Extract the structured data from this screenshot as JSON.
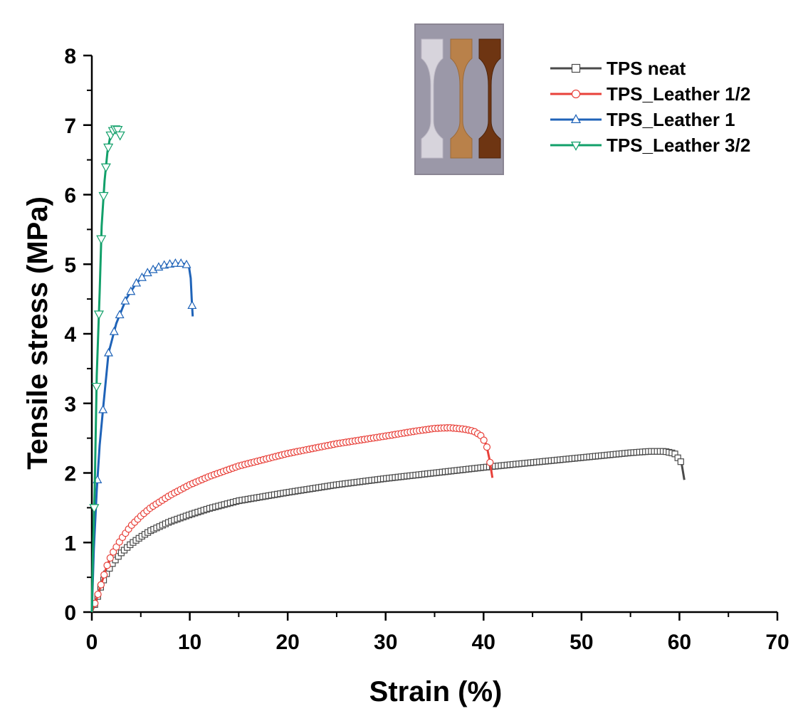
{
  "chart_data": {
    "type": "line",
    "title": "",
    "xlabel": "Strain (%)",
    "ylabel": "Tensile stress (MPa)",
    "xlim": [
      0,
      70
    ],
    "ylim": [
      0,
      8
    ],
    "xticks": [
      0,
      10,
      20,
      30,
      40,
      50,
      60,
      70
    ],
    "yticks": [
      0,
      1,
      2,
      3,
      4,
      5,
      6,
      7,
      8
    ],
    "grid": false,
    "legend_position": "top-right",
    "inset": "photo of three dog-bone tensile specimens (clear, light brown, dark brown)",
    "series": [
      {
        "name": "TPS neat",
        "color": "#4a4a4a",
        "marker": "square",
        "x": [
          0,
          0.5,
          1,
          1.5,
          2,
          3,
          4,
          5,
          6,
          8,
          10,
          12,
          15,
          20,
          25,
          30,
          35,
          40,
          45,
          50,
          55,
          57,
          58.5,
          59.5,
          60.2,
          60.5
        ],
        "y": [
          0,
          0.18,
          0.4,
          0.55,
          0.68,
          0.85,
          0.98,
          1.08,
          1.17,
          1.3,
          1.4,
          1.49,
          1.6,
          1.72,
          1.83,
          1.92,
          2.0,
          2.08,
          2.15,
          2.22,
          2.29,
          2.31,
          2.31,
          2.28,
          2.15,
          1.9
        ]
      },
      {
        "name": "TPS_Leather 1/2",
        "color": "#e8413a",
        "marker": "circle",
        "x": [
          0,
          0.5,
          1,
          1.5,
          2,
          3,
          4,
          5,
          6,
          8,
          10,
          12,
          15,
          20,
          25,
          30,
          33,
          35,
          36.5,
          38,
          39,
          39.8,
          40.3,
          40.6,
          40.9
        ],
        "y": [
          0,
          0.2,
          0.42,
          0.65,
          0.82,
          1.05,
          1.24,
          1.38,
          1.5,
          1.68,
          1.83,
          1.95,
          2.1,
          2.28,
          2.42,
          2.53,
          2.6,
          2.64,
          2.65,
          2.63,
          2.6,
          2.53,
          2.4,
          2.2,
          1.93
        ]
      },
      {
        "name": "TPS_Leather 1",
        "color": "#1f63b8",
        "marker": "triangle-up",
        "x": [
          0,
          0.2,
          0.5,
          0.8,
          1.2,
          1.7,
          2.5,
          3.5,
          4.5,
          5.5,
          6.5,
          7.5,
          8.5,
          9.3,
          9.9,
          10.1,
          10.2,
          10.3
        ],
        "y": [
          0,
          0.9,
          1.75,
          2.4,
          3.0,
          3.72,
          4.15,
          4.5,
          4.72,
          4.86,
          4.94,
          4.99,
          5.01,
          5.01,
          4.98,
          4.8,
          4.5,
          4.25
        ]
      },
      {
        "name": "TPS_Leather 3/2",
        "color": "#12a06a",
        "marker": "triangle-down",
        "x": [
          0,
          0.1,
          0.3,
          0.5,
          0.8,
          1.0,
          1.3,
          1.6,
          1.9,
          2.2,
          2.5,
          2.7,
          2.9
        ],
        "y": [
          0,
          0.8,
          1.8,
          3.4,
          4.6,
          5.55,
          6.2,
          6.62,
          6.85,
          6.93,
          6.95,
          6.93,
          6.85
        ]
      }
    ]
  }
}
